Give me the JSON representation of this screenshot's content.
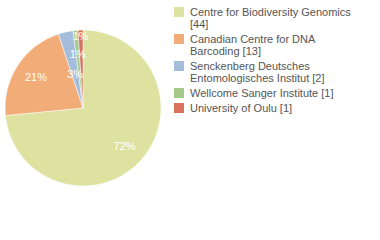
{
  "chart_data": {
    "type": "pie",
    "categories": [
      "Centre for Biodiversity Genomics [44]",
      "Canadian Centre for DNA Barcoding [13]",
      "Senckenberg Deutsches Entomologisches Institut [2]",
      "Wellcome Sanger Institute [1]",
      "University of Oulu [1]"
    ],
    "values": [
      72,
      21,
      3,
      1,
      1
    ],
    "value_labels": [
      "72%",
      "21%",
      "3%",
      "1%",
      "1%"
    ],
    "colors": [
      "#dde2a0",
      "#f1ac78",
      "#a5bdda",
      "#a3c98b",
      "#d8725f"
    ],
    "data_labels": true,
    "legend": "right"
  }
}
